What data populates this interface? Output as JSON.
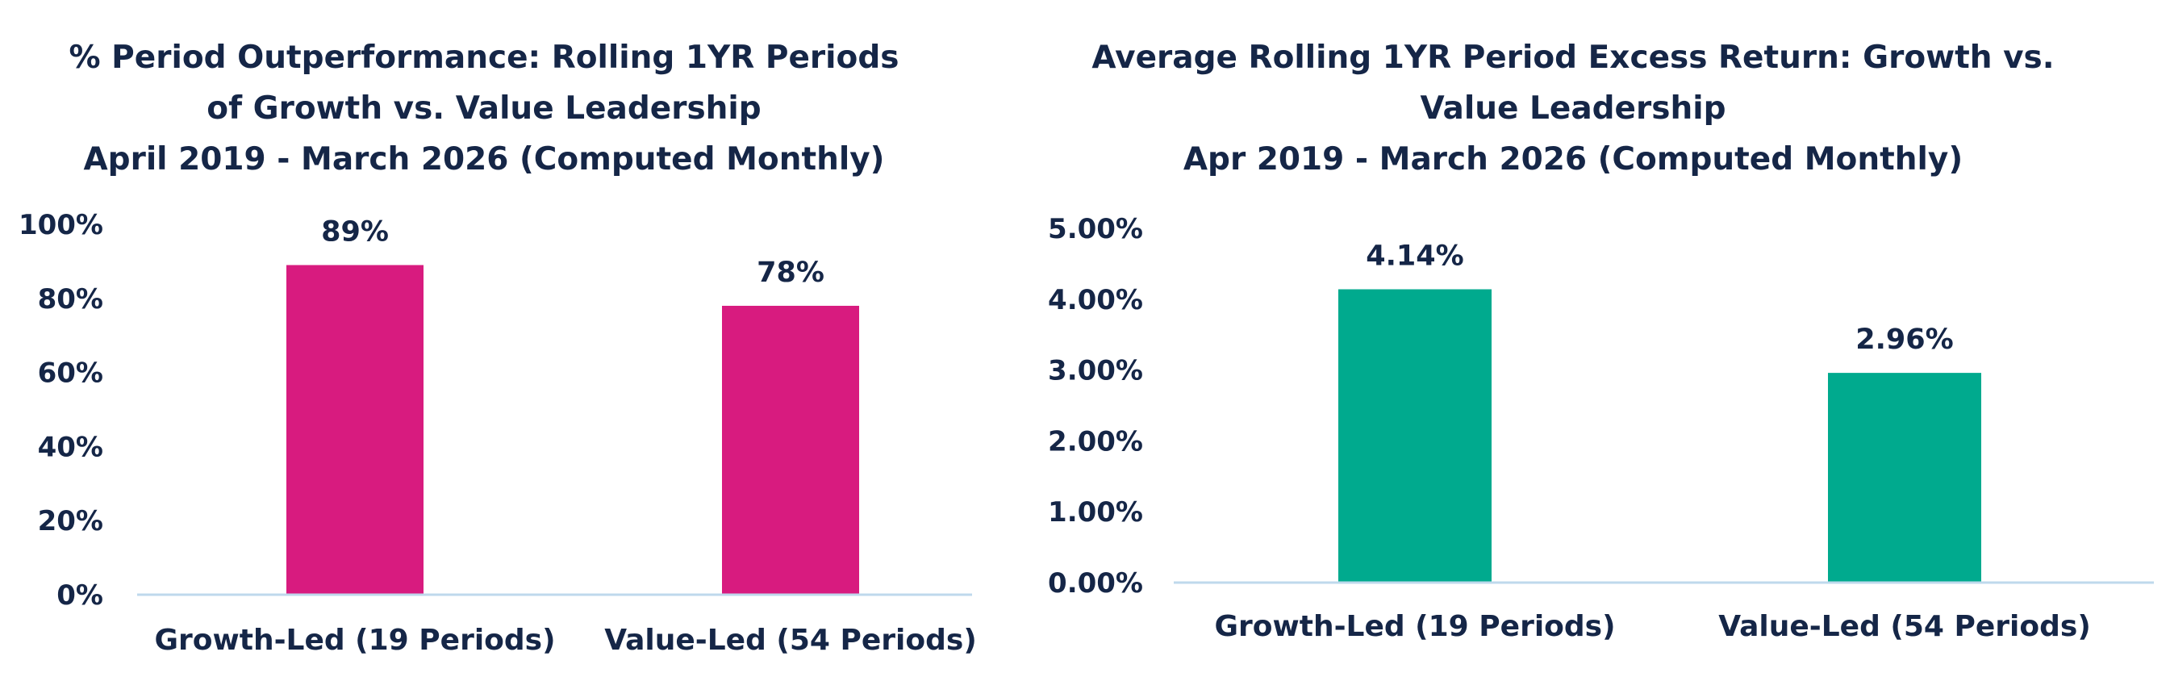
{
  "chart_data": [
    {
      "type": "bar",
      "title_lines": [
        "% Period Outperformance: Rolling 1YR Periods",
        "of Growth vs. Value Leadership",
        "April 2019 - March 2026 (Computed Monthly)"
      ],
      "categories": [
        "Growth-Led (19 Periods)",
        "Value-Led (54 Periods)"
      ],
      "values": [
        89,
        78
      ],
      "data_labels": [
        "89%",
        "78%"
      ],
      "yticks": [
        {
          "value": 0,
          "label": "0%"
        },
        {
          "value": 20,
          "label": "20%"
        },
        {
          "value": 40,
          "label": "40%"
        },
        {
          "value": 60,
          "label": "60%"
        },
        {
          "value": 80,
          "label": "80%"
        },
        {
          "value": 100,
          "label": "100%"
        }
      ],
      "ylim": [
        0,
        100
      ],
      "grid": false,
      "bar_color": "#D81B7F",
      "axis_color": "#BFD9EC"
    },
    {
      "type": "bar",
      "title_lines": [
        "Average Rolling 1YR Period Excess Return: Growth vs.",
        "Value Leadership",
        "Apr 2019 - March 2026 (Computed Monthly)"
      ],
      "categories": [
        "Growth-Led (19 Periods)",
        "Value-Led (54 Periods)"
      ],
      "values": [
        4.14,
        2.96
      ],
      "data_labels": [
        "4.14%",
        "2.96%"
      ],
      "yticks": [
        {
          "value": 0,
          "label": "0.00%"
        },
        {
          "value": 1,
          "label": "1.00%"
        },
        {
          "value": 2,
          "label": "2.00%"
        },
        {
          "value": 3,
          "label": "3.00%"
        },
        {
          "value": 4,
          "label": "4.00%"
        },
        {
          "value": 5,
          "label": "5.00%"
        }
      ],
      "ylim": [
        0,
        5
      ],
      "grid": false,
      "bar_color": "#00AA8E",
      "axis_color": "#BFD9EC"
    }
  ]
}
